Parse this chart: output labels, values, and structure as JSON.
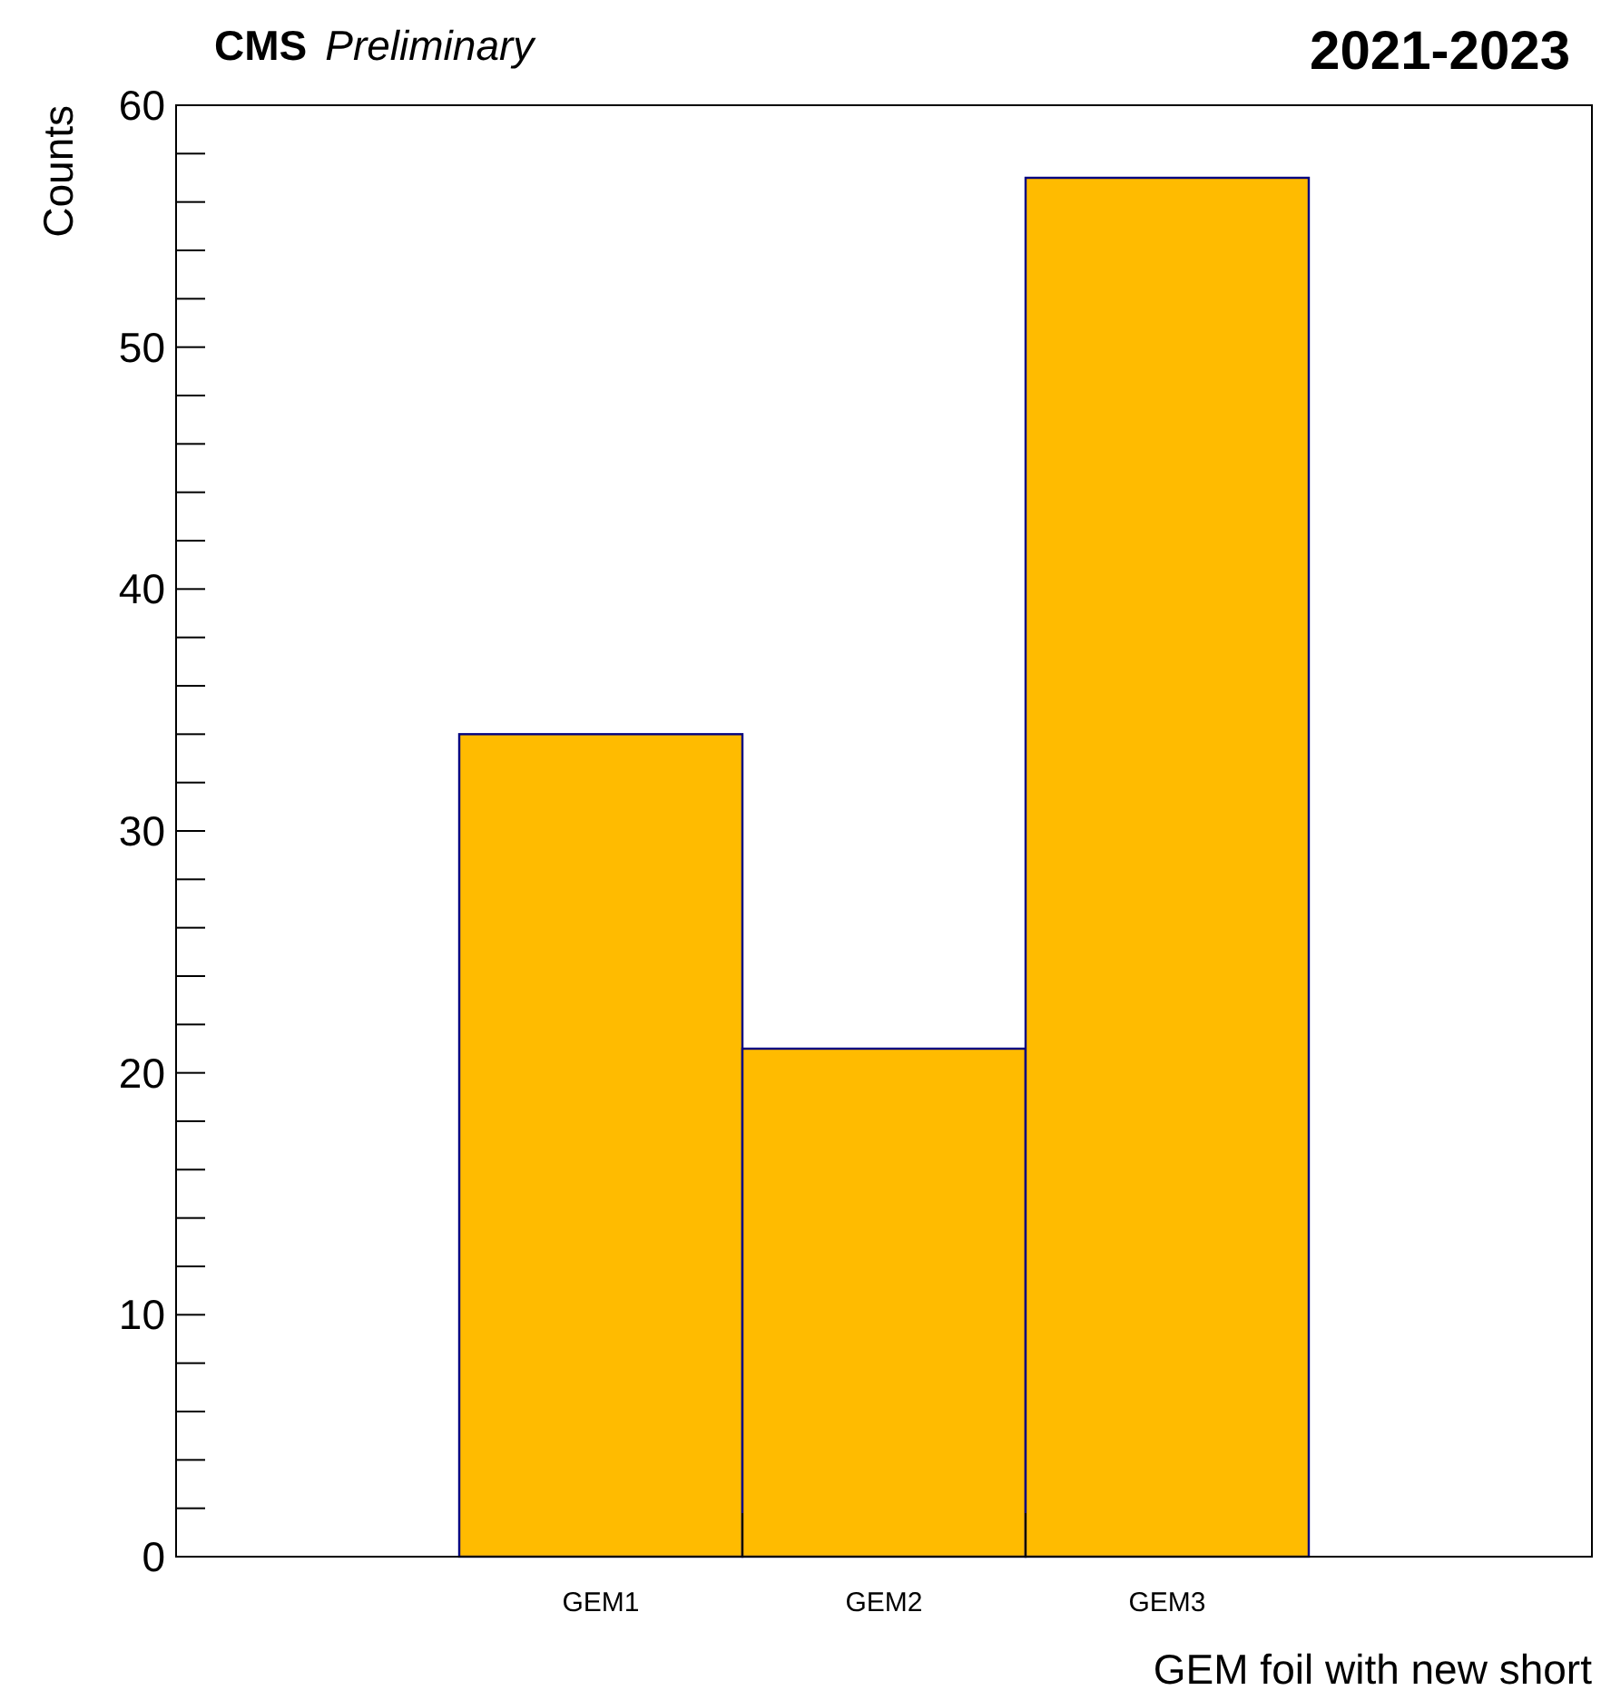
{
  "chart_data": {
    "type": "bar",
    "title": "CMS",
    "subtitle": "Preliminary",
    "annotations": [
      "2021-2023"
    ],
    "xlabel": "GEM foil with new short",
    "ylabel": "Counts",
    "categories": [
      null,
      "GEM1",
      "GEM2",
      "GEM3",
      null
    ],
    "values": [
      0,
      34,
      21,
      57,
      0
    ],
    "color": "#ffbb00",
    "ylim": [
      0,
      60
    ],
    "yticks": [
      0,
      {
        "value": 2,
        "label": null
      },
      {
        "value": 4,
        "label": null
      },
      {
        "value": 6,
        "label": null
      },
      {
        "value": 8,
        "label": null
      },
      10,
      {
        "value": 12,
        "label": null
      },
      {
        "value": 14,
        "label": null
      },
      {
        "value": 16,
        "label": null
      },
      {
        "value": 18,
        "label": null
      },
      20,
      {
        "value": 22,
        "label": null
      },
      {
        "value": 24,
        "label": null
      },
      {
        "value": 26,
        "label": null
      },
      {
        "value": 28,
        "label": null
      },
      30,
      {
        "value": 32,
        "label": null
      },
      {
        "value": 34,
        "label": null
      },
      {
        "value": 36,
        "label": null
      },
      {
        "value": 38,
        "label": null
      },
      40,
      {
        "value": 42,
        "label": null
      },
      {
        "value": 44,
        "label": null
      },
      {
        "value": 46,
        "label": null
      },
      {
        "value": 48,
        "label": null
      },
      50,
      {
        "value": 52,
        "label": null
      },
      {
        "value": 54,
        "label": null
      },
      {
        "value": 56,
        "label": null
      },
      {
        "value": 58,
        "label": null
      },
      60
    ],
    "grid": false
  }
}
